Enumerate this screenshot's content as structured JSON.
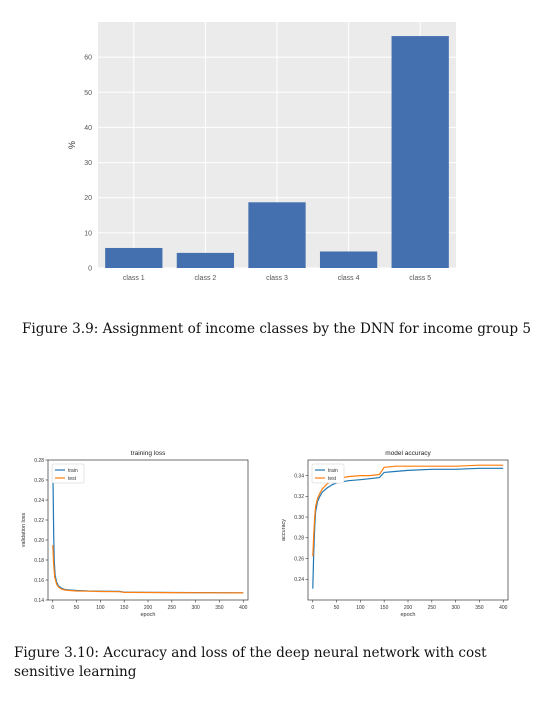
{
  "figure_3_9": {
    "caption": "Figure 3.9: Assignment of income classes by the DNN for income group 5",
    "chart_data": {
      "type": "bar",
      "categories": [
        "class 1",
        "class 2",
        "class 3",
        "class 4",
        "class 5"
      ],
      "values": [
        5.7,
        4.3,
        18.7,
        4.7,
        66.0
      ],
      "title": "",
      "xlabel": "",
      "ylabel": "%",
      "ylim": [
        0,
        70
      ],
      "yticks": [
        0,
        10,
        20,
        30,
        40,
        50,
        60
      ],
      "grid": true,
      "bar_color": "#4470b0",
      "background": "#ebebeb"
    }
  },
  "figure_3_10": {
    "caption": "Figure 3.10: Accuracy and loss of the deep neural network with cost sensitive learning",
    "chart_data": [
      {
        "type": "line",
        "title": "training loss",
        "xlabel": "epoch",
        "ylabel": "validation loss",
        "xlim": [
          -10,
          410
        ],
        "ylim": [
          0.14,
          0.28
        ],
        "xticks": [
          0,
          50,
          100,
          150,
          200,
          250,
          300,
          350,
          400
        ],
        "yticks": [
          0.14,
          0.16,
          0.18,
          0.2,
          0.22,
          0.24,
          0.26,
          0.28
        ],
        "legend": "top-left",
        "series": [
          {
            "name": "train",
            "color": "#1f77b4",
            "x": [
              0,
              1,
              2,
              3,
              5,
              8,
              12,
              18,
              25,
              35,
              50,
              75,
              100,
              140,
              150,
              200,
              250,
              300,
              350,
              400
            ],
            "y": [
              0.275,
              0.245,
              0.205,
              0.18,
              0.165,
              0.158,
              0.154,
              0.152,
              0.1505,
              0.15,
              0.1495,
              0.149,
              0.1488,
              0.1486,
              0.1478,
              0.1476,
              0.1475,
              0.1474,
              0.1473,
              0.1472
            ]
          },
          {
            "name": "test",
            "color": "#ff7f0e",
            "x": [
              0,
              2,
              4,
              8,
              12,
              18,
              25,
              35,
              50,
              75,
              100,
              140,
              150,
              200,
              250,
              300,
              350,
              400
            ],
            "y": [
              0.195,
              0.175,
              0.163,
              0.156,
              0.153,
              0.151,
              0.15,
              0.1495,
              0.149,
              0.1488,
              0.1485,
              0.1483,
              0.1476,
              0.1475,
              0.1474,
              0.1473,
              0.1472,
              0.1471
            ]
          }
        ]
      },
      {
        "type": "line",
        "title": "model accuracy",
        "xlabel": "epoch",
        "ylabel": "accuracy",
        "xlim": [
          -10,
          410
        ],
        "ylim": [
          0.22,
          0.355
        ],
        "xticks": [
          0,
          50,
          100,
          150,
          200,
          250,
          300,
          350,
          400
        ],
        "yticks": [
          0.24,
          0.26,
          0.28,
          0.3,
          0.32,
          0.34
        ],
        "legend": "top-left",
        "series": [
          {
            "name": "train",
            "color": "#1f77b4",
            "x": [
              0,
              2,
              4,
              6,
              10,
              15,
              20,
              30,
              40,
              50,
              75,
              100,
              120,
              140,
              150,
              175,
              200,
              250,
              300,
              350,
              400
            ],
            "y": [
              0.231,
              0.265,
              0.29,
              0.305,
              0.315,
              0.32,
              0.324,
              0.328,
              0.331,
              0.333,
              0.335,
              0.336,
              0.337,
              0.338,
              0.343,
              0.344,
              0.345,
              0.346,
              0.346,
              0.347,
              0.347
            ]
          },
          {
            "name": "test",
            "color": "#ff7f0e",
            "x": [
              0,
              2,
              4,
              6,
              10,
              15,
              20,
              30,
              40,
              50,
              75,
              100,
              120,
              140,
              150,
              175,
              200,
              250,
              300,
              350,
              400
            ],
            "y": [
              0.262,
              0.282,
              0.3,
              0.31,
              0.318,
              0.323,
              0.327,
              0.332,
              0.335,
              0.337,
              0.339,
              0.34,
              0.34,
              0.341,
              0.348,
              0.349,
              0.349,
              0.349,
              0.349,
              0.35,
              0.35
            ]
          }
        ]
      }
    ]
  }
}
